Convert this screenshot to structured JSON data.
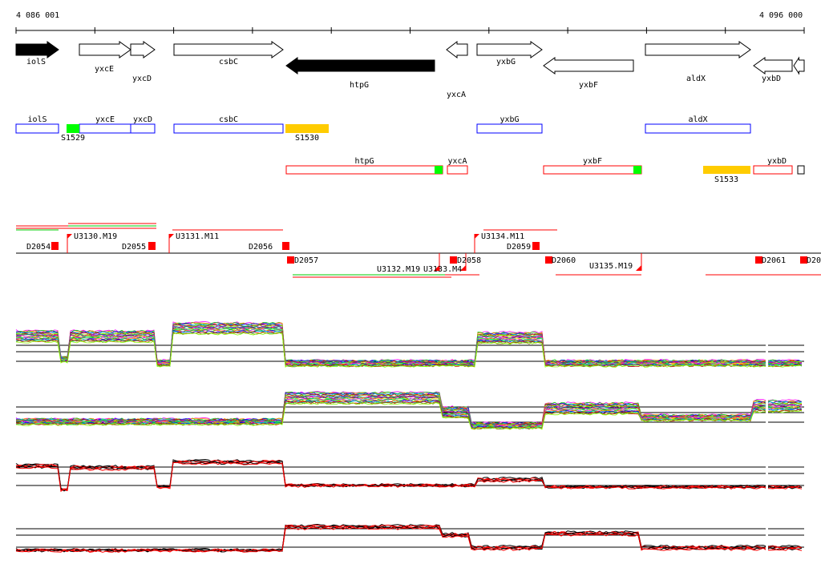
{
  "ruler": {
    "start": "4 086 001",
    "end": "4 096 000"
  },
  "genes": [
    "iolS",
    "yxcE",
    "yxcD",
    "csbC",
    "htpG",
    "yxcA",
    "yxbG",
    "yxbF",
    "aldX",
    "yxbD"
  ],
  "segments": {
    "S1529": "S1529",
    "S1530": "S1530",
    "S1533": "S1533"
  },
  "boxes_top": [
    "iolS",
    "yxcE",
    "yxcD",
    "csbC",
    "yxbG",
    "aldX"
  ],
  "boxes_bottom": [
    "htpG",
    "yxcA",
    "yxbF",
    "yxbD"
  ],
  "transcription": {
    "up": [
      "D2054",
      "U3130.M19",
      "D2055",
      "U3131.M11",
      "D2056",
      "U3134.M11",
      "D2059"
    ],
    "down": [
      "D2057",
      "U3132.M19",
      "U3133.M4",
      "D2058",
      "D2060",
      "U3135.M19",
      "D2061",
      "D20"
    ]
  },
  "colors": {
    "box_forward": "#0000ff",
    "box_reverse": "#ff0000",
    "segment_green": "#00ff00",
    "segment_orange": "#ffcc00",
    "marker": "#ff0000"
  }
}
